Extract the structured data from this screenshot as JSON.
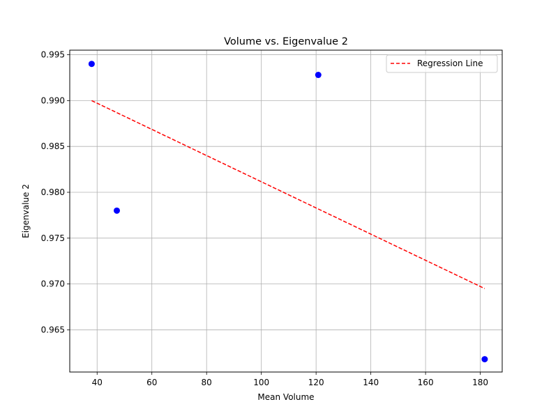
{
  "chart_data": {
    "type": "scatter",
    "title": "Volume vs. Eigenvalue 2",
    "xlabel": "Mean Volume",
    "ylabel": "Eigenvalue 2",
    "xlim": [
      30,
      188
    ],
    "ylim": [
      0.9604,
      0.9955
    ],
    "grid": true,
    "legend_placement": "top-right",
    "x_ticks": [
      40,
      60,
      80,
      100,
      120,
      140,
      160,
      180
    ],
    "y_ticks": [
      0.965,
      0.97,
      0.975,
      0.98,
      0.985,
      0.99,
      0.995
    ],
    "series": [
      {
        "kind": "scatter",
        "color": "#0000ff",
        "points": [
          {
            "x": 38.0,
            "y": 0.994
          },
          {
            "x": 47.2,
            "y": 0.978
          },
          {
            "x": 120.8,
            "y": 0.9928
          },
          {
            "x": 181.6,
            "y": 0.9618
          }
        ]
      },
      {
        "kind": "line",
        "name": "Regression Line",
        "color": "#ff0000",
        "style": "dashed",
        "points": [
          {
            "x": 38.0,
            "y": 0.99
          },
          {
            "x": 181.6,
            "y": 0.9695
          }
        ]
      }
    ]
  }
}
